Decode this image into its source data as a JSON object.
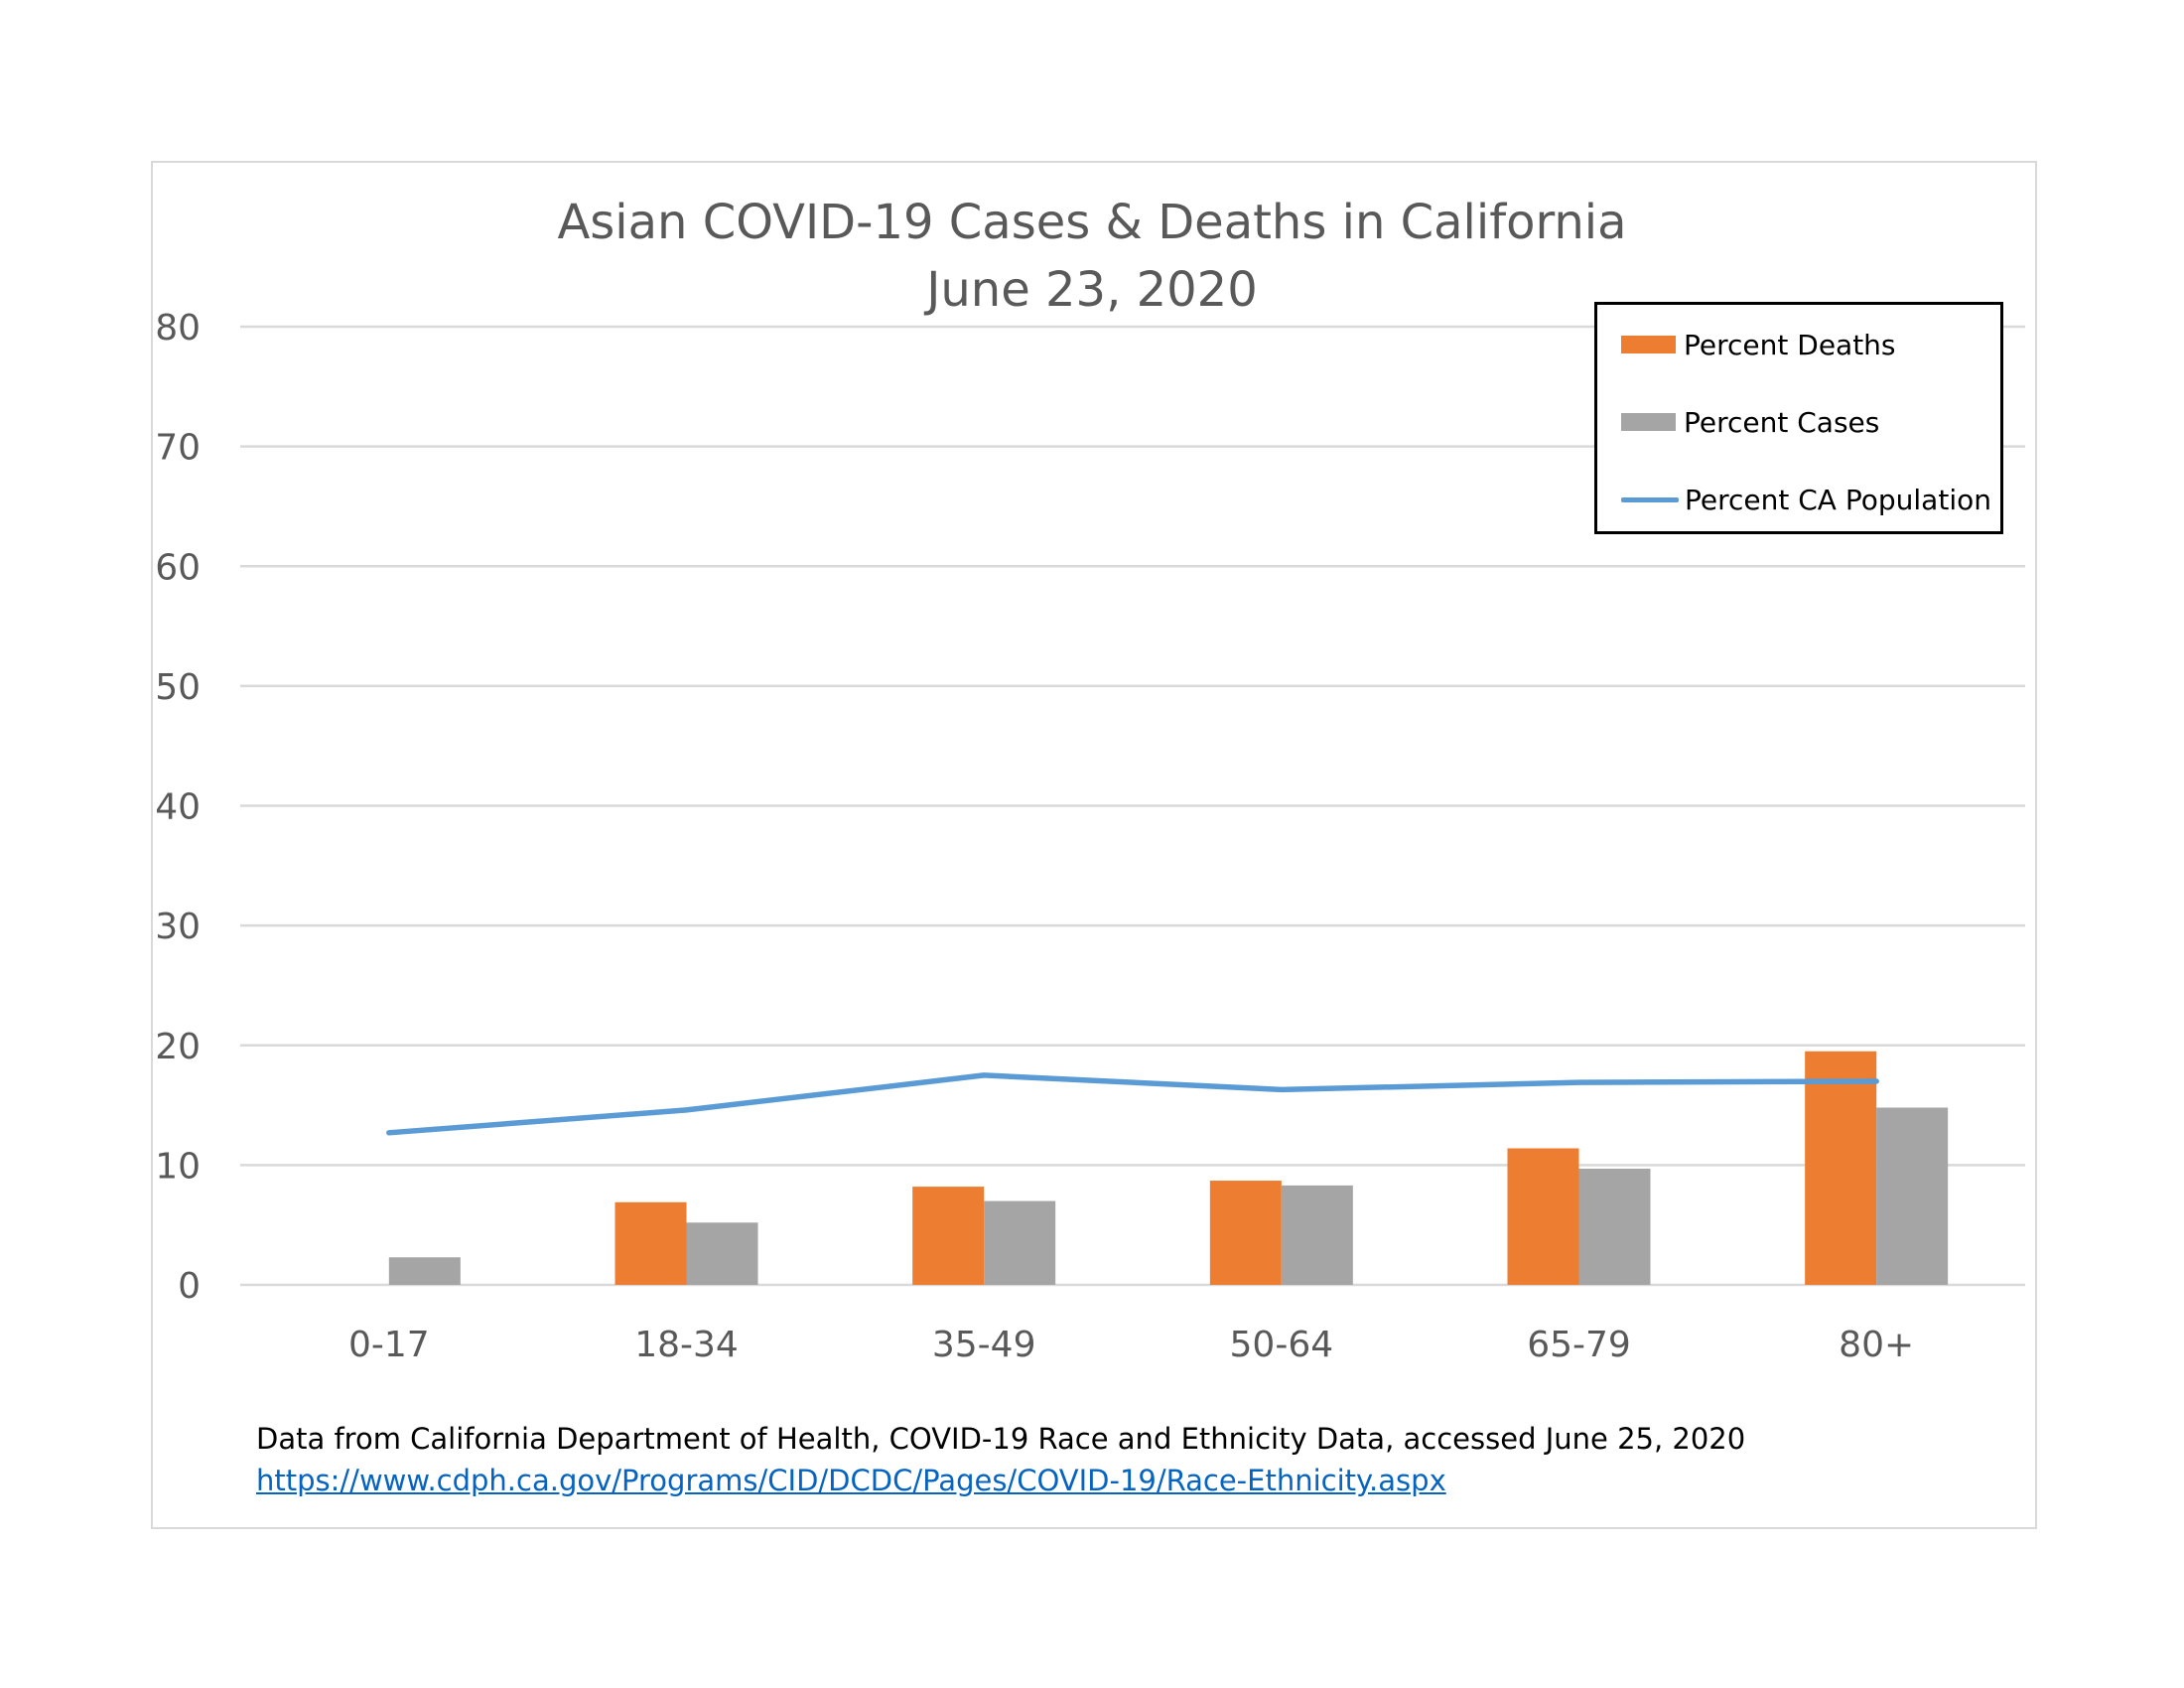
{
  "chart_data": {
    "type": "bar",
    "title": "Asian COVID-19 Cases & Deaths in California",
    "subtitle": "June 23, 2020",
    "xlabel": "",
    "ylabel": "",
    "ylim": [
      0,
      80
    ],
    "yticks": [
      "0",
      "10",
      "20",
      "30",
      "40",
      "50",
      "60",
      "70",
      "80"
    ],
    "grid": true,
    "legend_position": "top-right",
    "categories": [
      "0-17",
      "18-34",
      "35-49",
      "50-64",
      "65-79",
      "80+"
    ],
    "series": [
      {
        "name": "Percent Deaths",
        "kind": "bar",
        "color": "#ed7d31",
        "values": [
          0,
          6.9,
          8.2,
          8.7,
          11.4,
          19.5
        ]
      },
      {
        "name": "Percent Cases",
        "kind": "bar",
        "color": "#a5a5a5",
        "values": [
          2.3,
          5.2,
          7.0,
          8.3,
          9.7,
          14.8
        ]
      },
      {
        "name": "Percent CA Population",
        "kind": "line",
        "color": "#5b9bd5",
        "values": [
          12.7,
          14.6,
          17.5,
          16.3,
          16.9,
          17.0
        ]
      }
    ]
  },
  "source": {
    "text": "Data from California Department of Health, COVID-19 Race and Ethnicity Data, accessed June 25, 2020",
    "url": "https://www.cdph.ca.gov/Programs/CID/DCDC/Pages/COVID-19/Race-Ethnicity.aspx"
  }
}
